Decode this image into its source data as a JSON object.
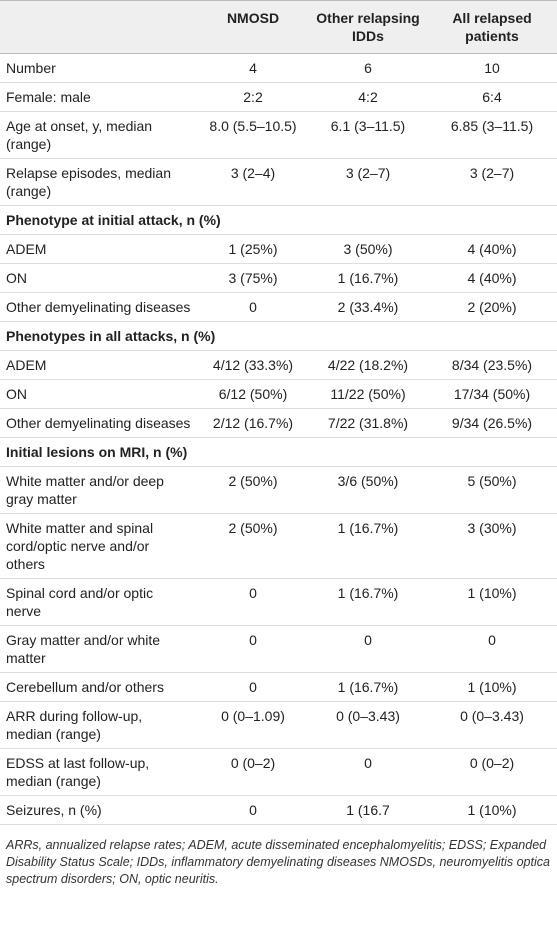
{
  "table": {
    "columns": [
      "NMOSD",
      "Other relapsing IDDs",
      "All relapsed patients"
    ],
    "rows": [
      [
        "Number",
        "4",
        "6",
        "10"
      ],
      [
        "Female: male",
        "2:2",
        "4:2",
        "6:4"
      ],
      [
        "Age at onset, y, median (range)",
        "8.0 (5.5–10.5)",
        "6.1 (3–11.5)",
        "6.85 (3–11.5)"
      ],
      [
        "Relapse episodes, median (range)",
        "3 (2–4)",
        "3 (2–7)",
        "3 (2–7)"
      ],
      {
        "section": "Phenotype at initial attack, n (%)"
      },
      [
        "ADEM",
        "1 (25%)",
        "3 (50%)",
        "4 (40%)"
      ],
      [
        "ON",
        "3 (75%)",
        "1 (16.7%)",
        "4 (40%)"
      ],
      [
        "Other demyelinating diseases",
        "0",
        "2 (33.4%)",
        "2 (20%)"
      ],
      {
        "section": "Phenotypes in all attacks, n (%)"
      },
      [
        "ADEM",
        "4/12 (33.3%)",
        "4/22 (18.2%)",
        "8/34 (23.5%)"
      ],
      [
        "ON",
        "6/12 (50%)",
        "11/22 (50%)",
        "17/34 (50%)"
      ],
      [
        "Other demyelinating diseases",
        "2/12 (16.7%)",
        "7/22 (31.8%)",
        "9/34 (26.5%)"
      ],
      {
        "section": "Initial lesions on MRI, n (%)"
      },
      [
        "White matter and/or deep gray matter",
        "2 (50%)",
        "3/6 (50%)",
        "5 (50%)"
      ],
      [
        "White matter and spinal cord/optic nerve and/or others",
        "2 (50%)",
        "1 (16.7%)",
        "3 (30%)"
      ],
      [
        "Spinal cord and/or optic nerve",
        "0",
        "1 (16.7%)",
        "1 (10%)"
      ],
      [
        "Gray matter and/or white matter",
        "0",
        "0",
        "0"
      ],
      [
        "Cerebellum and/or others",
        "0",
        "1 (16.7%)",
        "1 (10%)"
      ],
      [
        "ARR during follow-up, median (range)",
        "0 (0–1.09)",
        "0 (0–3.43)",
        "0 (0–3.43)"
      ],
      [
        "EDSS at last follow-up, median (range)",
        "0 (0–2)",
        "0",
        "0 (0–2)"
      ],
      [
        "Seizures, n (%)",
        "0",
        "1 (16.7",
        "1 (10%)"
      ]
    ],
    "footnote": "ARRs, annualized relapse rates; ADEM, acute disseminated encephalomyelitis; EDSS; Expanded Disability Status Scale; IDDs, inflammatory demyelinating diseases NMOSDs, neuromyelitis optica spectrum disorders; ON, optic neuritis."
  }
}
